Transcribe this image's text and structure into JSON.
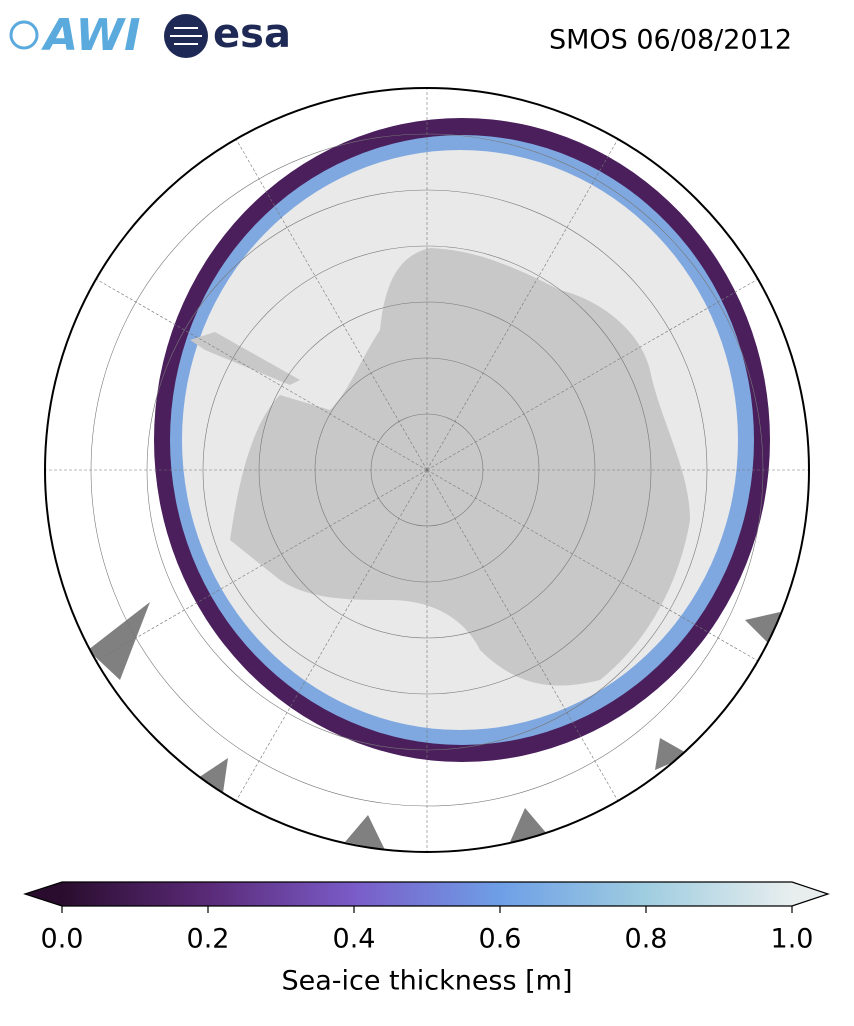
{
  "header": {
    "logos": [
      "AWI",
      "esa"
    ],
    "title": "SMOS 06/08/2012"
  },
  "colorbar": {
    "label": "Sea-ice thickness [m]",
    "lim": [
      0,
      1
    ],
    "ticks": [
      {
        "value": 0,
        "label": "0.0"
      },
      {
        "value": 0.2,
        "label": "0.2"
      },
      {
        "value": 0.4,
        "label": "0.4"
      },
      {
        "value": 0.6,
        "label": "0.6"
      },
      {
        "value": 0.8,
        "label": "0.8"
      },
      {
        "value": 1,
        "label": "1.0"
      }
    ],
    "colors": [
      "#2a0d2e",
      "#5a2a78",
      "#7a5cc8",
      "#6e9fe6",
      "#9fcde0",
      "#e8eeee"
    ]
  }
}
